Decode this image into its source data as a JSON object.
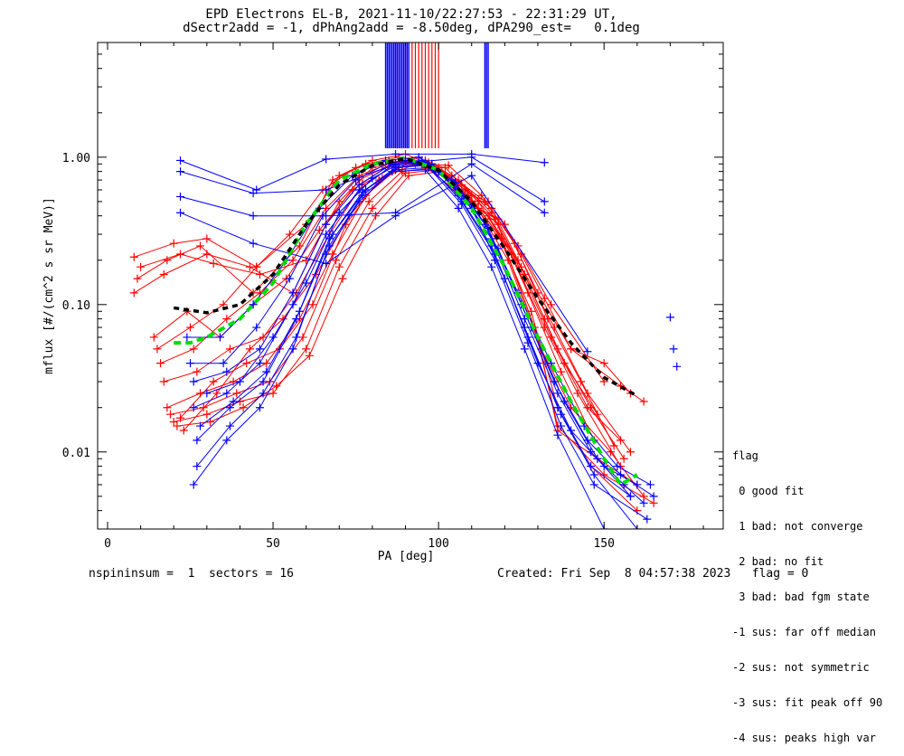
{
  "title_line1": "EPD Electrons EL-B, 2021-11-10/22:27:53 - 22:31:29 UT,",
  "title_line2": "dSectr2add = -1, dPhAng2add = -8.50deg, dPA290_est=   0.1deg",
  "footer": {
    "left": "nspininsum =  1  sectors = 16",
    "right": "Created: Fri Sep  8 04:57:38 2023   flag = 0"
  },
  "legend": {
    "title": "flag",
    "items": [
      " 0 good fit",
      " 1 bad: not converge",
      " 2 bad: no fit",
      " 3 bad: bad fgm state",
      "-1 sus: far off median",
      "-2 sus: not symmetric",
      "-3 sus: fit peak off 90",
      "-4 sus: peaks high var"
    ]
  },
  "colors": {
    "red": "#ff0000",
    "blue": "#0000ff",
    "black": "#000000",
    "green": "#00dd00"
  },
  "chart_data": {
    "type": "line",
    "xlabel": "PA [deg]",
    "ylabel": "mflux [#/(cm^2 s sr MeV)]",
    "xlim": [
      -3,
      186
    ],
    "ylim": [
      0.003,
      6.0
    ],
    "yscale": "log",
    "xticks": [
      0,
      50,
      100,
      150
    ],
    "yticks": [
      0.01,
      0.1,
      1.0
    ],
    "ytick_labels": [
      "0.01",
      "0.10",
      "1.00"
    ],
    "vertical_markers": {
      "red": [
        85,
        86,
        87,
        88,
        89,
        90,
        91,
        92,
        93,
        94,
        95,
        96,
        97,
        98,
        99,
        100
      ],
      "blue": [
        84,
        84.5,
        85,
        85.5,
        86,
        86.5,
        87,
        87.5,
        88,
        88.5,
        89,
        89.5,
        90,
        90.5,
        91,
        114,
        114.5,
        115
      ]
    },
    "median_fit": {
      "x": [
        20,
        30,
        40,
        50,
        60,
        70,
        80,
        90,
        100,
        110,
        120,
        130,
        140,
        150,
        160
      ],
      "y": [
        0.095,
        0.088,
        0.1,
        0.16,
        0.35,
        0.65,
        0.88,
        0.98,
        0.82,
        0.5,
        0.24,
        0.11,
        0.055,
        0.032,
        0.024
      ]
    },
    "median_data": {
      "x": [
        20,
        25,
        30,
        40,
        50,
        60,
        70,
        80,
        90,
        100,
        110,
        120,
        130,
        140,
        150,
        155,
        160
      ],
      "y": [
        0.055,
        0.055,
        0.06,
        0.08,
        0.14,
        0.35,
        0.7,
        0.9,
        0.99,
        0.82,
        0.45,
        0.18,
        0.06,
        0.022,
        0.009,
        0.006,
        0.007
      ]
    },
    "blue_isolated_points": {
      "x": [
        170,
        171,
        172
      ],
      "y": [
        0.082,
        0.05,
        0.038
      ]
    },
    "series": [
      {
        "color": "red",
        "x": [
          8,
          20,
          30,
          45,
          60,
          70,
          80,
          90,
          100,
          110,
          115,
          120,
          130,
          140,
          155,
          162
        ],
        "y": [
          0.21,
          0.26,
          0.28,
          0.18,
          0.35,
          0.75,
          0.95,
          1.05,
          0.85,
          0.55,
          0.5,
          0.35,
          0.12,
          0.05,
          0.028,
          0.022
        ]
      },
      {
        "color": "red",
        "x": [
          10,
          22,
          32,
          46,
          60,
          70,
          80,
          90,
          100,
          112,
          118,
          125,
          132,
          140,
          150,
          158
        ],
        "y": [
          0.18,
          0.22,
          0.19,
          0.16,
          0.2,
          0.5,
          0.85,
          0.95,
          0.8,
          0.45,
          0.38,
          0.22,
          0.11,
          0.05,
          0.04,
          0.025
        ]
      },
      {
        "color": "red",
        "x": [
          9,
          18,
          28,
          44,
          58,
          68,
          78,
          88,
          98,
          110,
          118,
          126,
          134,
          145,
          155
        ],
        "y": [
          0.15,
          0.2,
          0.25,
          0.12,
          0.25,
          0.7,
          0.9,
          1.0,
          0.9,
          0.5,
          0.35,
          0.15,
          0.06,
          0.02,
          0.012
        ]
      },
      {
        "color": "red",
        "x": [
          8,
          17,
          30,
          43,
          56,
          66,
          76,
          86,
          96,
          108,
          116,
          124,
          132,
          138,
          148
        ],
        "y": [
          0.12,
          0.16,
          0.22,
          0.18,
          0.12,
          0.35,
          0.7,
          0.9,
          0.95,
          0.6,
          0.45,
          0.2,
          0.08,
          0.04,
          0.018
        ]
      },
      {
        "color": "red",
        "x": [
          15,
          25,
          35,
          45,
          55,
          65,
          75,
          85,
          95,
          105,
          115,
          125,
          135,
          145,
          158
        ],
        "y": [
          0.05,
          0.07,
          0.1,
          0.18,
          0.3,
          0.6,
          0.85,
          0.95,
          0.9,
          0.6,
          0.4,
          0.18,
          0.07,
          0.025,
          0.01
        ]
      },
      {
        "color": "red",
        "x": [
          16,
          26,
          36,
          46,
          56,
          66,
          76,
          86,
          96,
          106,
          116,
          126,
          136,
          146,
          156
        ],
        "y": [
          0.04,
          0.05,
          0.08,
          0.12,
          0.2,
          0.45,
          0.75,
          0.92,
          0.95,
          0.7,
          0.42,
          0.16,
          0.05,
          0.02,
          0.009
        ]
      },
      {
        "color": "red",
        "x": [
          17,
          27,
          37,
          47,
          57,
          67,
          77,
          87,
          97,
          107,
          117,
          127,
          137,
          147
        ],
        "y": [
          0.03,
          0.035,
          0.05,
          0.06,
          0.12,
          0.3,
          0.65,
          0.88,
          0.92,
          0.65,
          0.38,
          0.12,
          0.035,
          0.012
        ]
      },
      {
        "color": "red",
        "x": [
          18,
          28,
          38,
          48,
          58,
          68,
          78,
          88,
          98,
          108,
          118,
          128,
          136,
          146,
          160
        ],
        "y": [
          0.02,
          0.025,
          0.03,
          0.04,
          0.08,
          0.22,
          0.55,
          0.85,
          0.9,
          0.6,
          0.3,
          0.09,
          0.02,
          0.008,
          0.004
        ]
      },
      {
        "color": "red",
        "x": [
          19,
          29,
          39,
          49,
          59,
          69,
          79,
          89,
          99,
          109,
          119,
          129,
          136,
          150,
          165
        ],
        "y": [
          0.018,
          0.02,
          0.025,
          0.03,
          0.06,
          0.2,
          0.5,
          0.8,
          0.85,
          0.55,
          0.28,
          0.07,
          0.015,
          0.007,
          0.0045
        ]
      },
      {
        "color": "red",
        "x": [
          20,
          30,
          40,
          50,
          60,
          70,
          80,
          90,
          100,
          110,
          120,
          130,
          136,
          148,
          160
        ],
        "y": [
          0.016,
          0.018,
          0.022,
          0.025,
          0.05,
          0.18,
          0.45,
          0.78,
          0.82,
          0.5,
          0.25,
          0.06,
          0.014,
          0.009,
          0.006
        ]
      },
      {
        "color": "red",
        "x": [
          21,
          31,
          41,
          51,
          61,
          71,
          81,
          91,
          101,
          111,
          121,
          131,
          140,
          152,
          162
        ],
        "y": [
          0.015,
          0.016,
          0.02,
          0.028,
          0.045,
          0.15,
          0.4,
          0.75,
          0.8,
          0.48,
          0.2,
          0.05,
          0.02,
          0.01,
          0.005
        ]
      },
      {
        "color": "red",
        "x": [
          22,
          32,
          42,
          52,
          62,
          72,
          82,
          92,
          102,
          112,
          122,
          132,
          142,
          155
        ],
        "y": [
          0.017,
          0.03,
          0.04,
          0.05,
          0.1,
          0.35,
          0.7,
          0.95,
          0.85,
          0.5,
          0.22,
          0.07,
          0.025,
          0.008
        ]
      },
      {
        "color": "red",
        "x": [
          23,
          33,
          43,
          53,
          63,
          73,
          83,
          93,
          103,
          113,
          123,
          133,
          143,
          153
        ],
        "y": [
          0.014,
          0.025,
          0.05,
          0.08,
          0.16,
          0.4,
          0.72,
          0.9,
          0.88,
          0.55,
          0.26,
          0.08,
          0.03,
          0.011
        ]
      },
      {
        "color": "red",
        "x": [
          14,
          24,
          34,
          44,
          54,
          64,
          74,
          84,
          94,
          104,
          114,
          124,
          134,
          150
        ],
        "y": [
          0.06,
          0.09,
          0.06,
          0.1,
          0.15,
          0.32,
          0.6,
          0.85,
          1.0,
          0.75,
          0.5,
          0.25,
          0.1,
          0.03
        ]
      },
      {
        "color": "blue",
        "x": [
          22,
          45,
          66,
          87,
          110,
          132
        ],
        "y": [
          0.95,
          0.6,
          0.97,
          1.05,
          1.05,
          0.92
        ]
      },
      {
        "color": "blue",
        "x": [
          22,
          44,
          66,
          87,
          110,
          132
        ],
        "y": [
          0.8,
          0.57,
          0.6,
          0.9,
          1.0,
          0.5
        ]
      },
      {
        "color": "blue",
        "x": [
          22,
          44,
          66,
          87,
          110,
          132
        ],
        "y": [
          0.54,
          0.4,
          0.4,
          0.42,
          0.9,
          0.42
        ]
      },
      {
        "color": "blue",
        "x": [
          22,
          44,
          66,
          87,
          110,
          145
        ],
        "y": [
          0.42,
          0.26,
          0.19,
          0.4,
          0.75,
          0.048
        ]
      },
      {
        "color": "blue",
        "x": [
          24,
          34,
          44,
          54,
          64,
          74,
          84,
          94,
          104,
          114,
          124,
          134,
          144,
          154,
          164
        ],
        "y": [
          0.06,
          0.06,
          0.1,
          0.2,
          0.45,
          0.75,
          0.95,
          1.0,
          0.7,
          0.35,
          0.12,
          0.04,
          0.015,
          0.008,
          0.006
        ]
      },
      {
        "color": "blue",
        "x": [
          25,
          35,
          45,
          55,
          65,
          75,
          85,
          95,
          105,
          115,
          125,
          135,
          145,
          155,
          165
        ],
        "y": [
          0.04,
          0.04,
          0.07,
          0.15,
          0.4,
          0.7,
          0.92,
          0.95,
          0.68,
          0.33,
          0.1,
          0.03,
          0.012,
          0.007,
          0.005
        ]
      },
      {
        "color": "blue",
        "x": [
          26,
          36,
          46,
          56,
          66,
          76,
          86,
          96,
          106,
          116,
          126,
          136,
          146,
          156,
          162
        ],
        "y": [
          0.03,
          0.035,
          0.05,
          0.12,
          0.35,
          0.65,
          0.9,
          0.92,
          0.6,
          0.28,
          0.08,
          0.025,
          0.01,
          0.006,
          0.0045
        ]
      },
      {
        "color": "blue",
        "x": [
          26,
          36,
          46,
          56,
          66,
          76,
          86,
          96,
          106,
          116,
          126,
          136,
          146,
          158
        ],
        "y": [
          0.02,
          0.025,
          0.04,
          0.1,
          0.3,
          0.6,
          0.88,
          0.9,
          0.55,
          0.25,
          0.07,
          0.02,
          0.008,
          0.005
        ]
      },
      {
        "color": "blue",
        "x": [
          27,
          37,
          47,
          57,
          67,
          77,
          87,
          97,
          107,
          117,
          127,
          137,
          147,
          160
        ],
        "y": [
          0.012,
          0.02,
          0.03,
          0.08,
          0.28,
          0.58,
          0.85,
          0.88,
          0.5,
          0.22,
          0.06,
          0.018,
          0.007,
          0.003
        ]
      },
      {
        "color": "blue",
        "x": [
          27,
          37,
          47,
          57,
          67,
          77,
          87,
          97,
          107,
          117,
          127,
          137,
          147,
          163
        ],
        "y": [
          0.008,
          0.015,
          0.025,
          0.06,
          0.25,
          0.55,
          0.82,
          0.85,
          0.48,
          0.2,
          0.055,
          0.015,
          0.006,
          0.0035
        ]
      },
      {
        "color": "blue",
        "x": [
          26,
          36,
          46,
          56,
          66,
          76,
          86,
          96,
          106,
          116,
          126,
          136,
          150
        ],
        "y": [
          0.006,
          0.012,
          0.02,
          0.05,
          0.22,
          0.5,
          0.8,
          0.82,
          0.45,
          0.18,
          0.05,
          0.013,
          0.003
        ]
      },
      {
        "color": "blue",
        "x": [
          28,
          38,
          48,
          58,
          68,
          78,
          88,
          98,
          108,
          118,
          128,
          138,
          148,
          158
        ],
        "y": [
          0.015,
          0.022,
          0.035,
          0.09,
          0.3,
          0.6,
          0.86,
          0.9,
          0.52,
          0.24,
          0.07,
          0.022,
          0.009,
          0.005
        ]
      },
      {
        "color": "blue",
        "x": [
          30,
          40,
          50,
          60,
          70,
          80,
          90,
          100,
          110,
          120,
          130,
          140,
          150,
          160
        ],
        "y": [
          0.025,
          0.03,
          0.06,
          0.14,
          0.42,
          0.72,
          0.95,
          0.8,
          0.45,
          0.15,
          0.04,
          0.014,
          0.008,
          0.006
        ]
      }
    ]
  }
}
